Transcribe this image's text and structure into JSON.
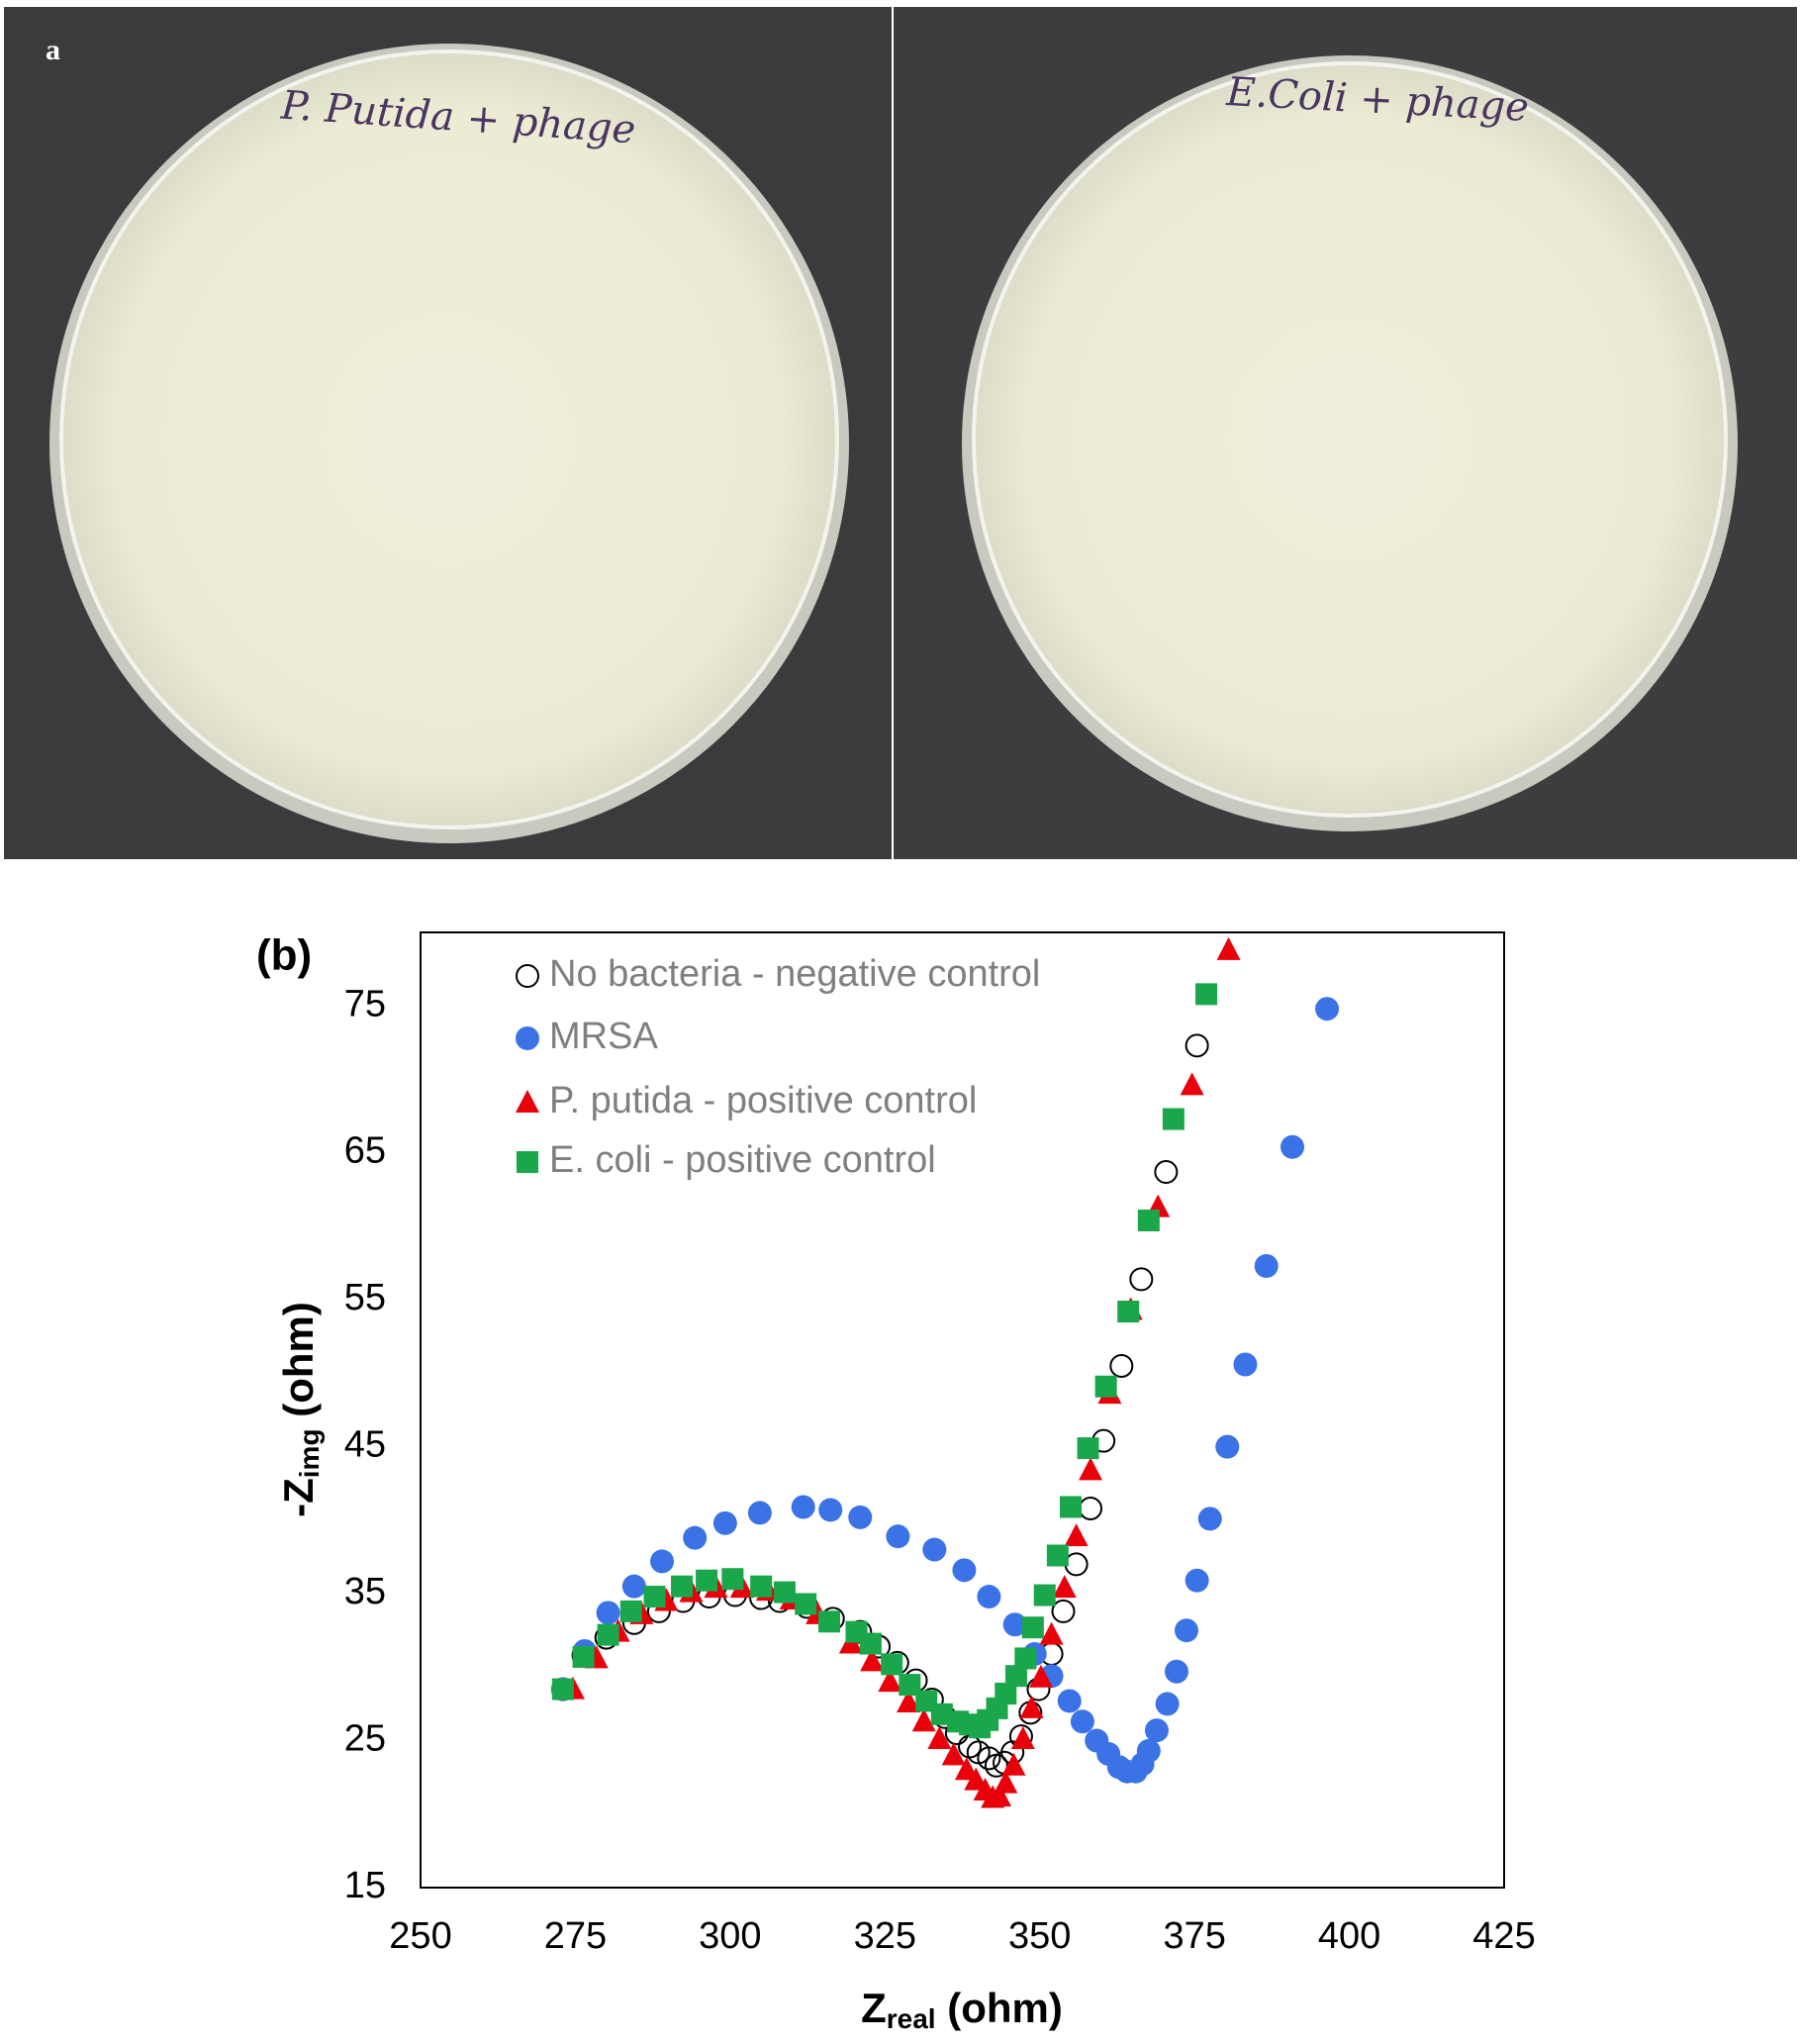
{
  "photos": {
    "panel_label": "a",
    "plates": [
      {
        "label": "P. Putida + phage"
      },
      {
        "label": "E.Coli + phage"
      }
    ]
  },
  "chart_data": {
    "type": "scatter",
    "panel_label": "(b)",
    "x_label": {
      "main": "Z",
      "sub": "real",
      "rest": " (ohm)"
    },
    "y_label": {
      "main": "-Z",
      "sub": "img",
      "rest": " (ohm)"
    },
    "xlim": [
      250,
      425
    ],
    "xticks": [
      250,
      275,
      300,
      325,
      350,
      375,
      400,
      425
    ],
    "ylim": [
      15,
      80
    ],
    "yticks": [
      15,
      25,
      35,
      45,
      55,
      65,
      75
    ],
    "grid": false,
    "legend": "upper left",
    "series": [
      {
        "name": "No bacteria - negative control",
        "color": "#000000",
        "marker": "open-circle",
        "x": [
          273,
          276.3,
          280,
          284.5,
          288.5,
          292.4,
          296.6,
          300.8,
          305,
          308,
          312.4,
          316.6,
          321,
          324,
          327,
          330,
          332.6,
          334.7,
          336.6,
          338.7,
          340.1,
          341.8,
          343,
          344.3,
          345.6,
          347,
          348.5,
          349.8,
          351.9,
          353.8,
          355.9,
          358.2,
          360.3,
          363.2,
          366.4,
          370.4,
          375.4
        ],
        "values": [
          28.5,
          30.8,
          32,
          33,
          33.8,
          34.5,
          34.8,
          34.9,
          34.7,
          34.5,
          34.1,
          33.3,
          32.4,
          31.4,
          30.3,
          29.1,
          27.8,
          26.6,
          25.5,
          24.6,
          24.2,
          23.8,
          23.3,
          23.5,
          24.2,
          25.3,
          26.9,
          28.5,
          30.9,
          33.8,
          37,
          40.8,
          45.4,
          50.5,
          56.4,
          63.7,
          72.3
        ]
      },
      {
        "name": "MRSA",
        "color": "#3b73e6",
        "marker": "circle",
        "x": [
          273,
          276.5,
          280.3,
          284.5,
          289,
          294.3,
          299.2,
          304.8,
          311.8,
          316.2,
          321,
          327.1,
          333,
          337.8,
          341.8,
          346,
          349.2,
          351.9,
          354.8,
          356.9,
          359.2,
          361.1,
          362.8,
          364.1,
          365.5,
          366.6,
          367.6,
          368.9,
          370.6,
          372.1,
          373.7,
          375.4,
          377.5,
          380.3,
          383.2,
          386.6,
          390.8,
          396.4
        ],
        "values": [
          28.5,
          31.1,
          33.7,
          35.5,
          37.2,
          38.8,
          39.8,
          40.5,
          40.9,
          40.7,
          40.2,
          38.9,
          38,
          36.6,
          34.8,
          32.9,
          30.9,
          29.4,
          27.7,
          26.3,
          25,
          24.1,
          23.2,
          22.9,
          22.9,
          23.4,
          24.3,
          25.7,
          27.5,
          29.7,
          32.5,
          35.9,
          40.1,
          45,
          50.6,
          57.3,
          65.4,
          74.8
        ]
      },
      {
        "name": "P. putida - positive control",
        "color": "#e8000b",
        "marker": "triangle",
        "x": [
          274.6,
          278.4,
          281.9,
          285.7,
          289.7,
          293.7,
          297.7,
          301.9,
          306.1,
          309.9,
          314.1,
          319.5,
          322.9,
          325.8,
          328.8,
          331.3,
          333.8,
          336.1,
          338.2,
          339.7,
          341.2,
          342.4,
          343.5,
          344.5,
          345.8,
          347.3,
          348.7,
          350.2,
          351.9,
          354,
          355.9,
          358.2,
          361.3,
          364.7,
          369.1,
          374.6,
          380.5
        ],
        "values": [
          28.5,
          30.6,
          32.4,
          33.6,
          34.5,
          35.1,
          35.4,
          35.4,
          35.2,
          34.6,
          33.6,
          31.6,
          30.4,
          29,
          27.6,
          26.3,
          25.1,
          24,
          23,
          22.3,
          21.6,
          21.1,
          21.2,
          22.1,
          23.3,
          25.1,
          27.2,
          29.3,
          32.2,
          35.4,
          38.9,
          43.4,
          48.6,
          54.3,
          61.3,
          69.6,
          78.8
        ]
      },
      {
        "name": "E. coli - positive control",
        "color": "#1aa64a",
        "marker": "square",
        "x": [
          273,
          276.3,
          280.3,
          284,
          287.8,
          292.2,
          296.2,
          300.4,
          305,
          308.8,
          312.2,
          316,
          320.4,
          322.7,
          326.1,
          329,
          331.7,
          334.2,
          336.8,
          338.7,
          340.3,
          341.6,
          343.1,
          344.5,
          346.2,
          347.7,
          348.9,
          350.8,
          352.9,
          355,
          357.8,
          360.7,
          364.3,
          367.6,
          371.6,
          376.9
        ],
        "values": [
          28.5,
          30.7,
          32.2,
          33.8,
          34.8,
          35.5,
          35.9,
          36,
          35.5,
          35.1,
          34.3,
          33.1,
          32.4,
          31.6,
          30.2,
          28.8,
          27.7,
          26.8,
          26.3,
          26.1,
          25.9,
          26.4,
          27.2,
          28.2,
          29.4,
          30.6,
          32.7,
          34.9,
          37.6,
          40.9,
          44.9,
          49.1,
          54.2,
          60.4,
          67.3,
          75.8
        ]
      }
    ]
  }
}
